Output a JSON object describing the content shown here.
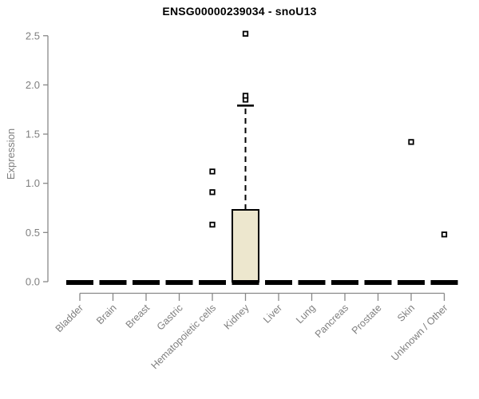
{
  "chart_data": {
    "type": "boxplot",
    "title": "ENSG00000239034 - snoU13",
    "ylabel": "Expression",
    "ylim": [
      0,
      2.5
    ],
    "yticks": [
      0.0,
      0.5,
      1.0,
      1.5,
      2.0,
      2.5
    ],
    "ytick_labels": [
      "0.0",
      "0.5",
      "1.0",
      "1.5",
      "2.0",
      "2.5"
    ],
    "categories": [
      "Bladder",
      "Brain",
      "Breast",
      "Gastric",
      "Hematopoietic cells",
      "Kidney",
      "Liver",
      "Lung",
      "Pancreas",
      "Prostate",
      "Skin",
      "Unknown / Other"
    ],
    "series": [
      {
        "name": "Bladder",
        "q1": 0,
        "median": 0,
        "q3": 0,
        "whisker_low": 0,
        "whisker_high": 0,
        "outliers": []
      },
      {
        "name": "Brain",
        "q1": 0,
        "median": 0,
        "q3": 0,
        "whisker_low": 0,
        "whisker_high": 0,
        "outliers": []
      },
      {
        "name": "Breast",
        "q1": 0,
        "median": 0,
        "q3": 0,
        "whisker_low": 0,
        "whisker_high": 0,
        "outliers": []
      },
      {
        "name": "Gastric",
        "q1": 0,
        "median": 0,
        "q3": 0,
        "whisker_low": 0,
        "whisker_high": 0,
        "outliers": []
      },
      {
        "name": "Hematopoietic cells",
        "q1": 0,
        "median": 0,
        "q3": 0,
        "whisker_low": 0,
        "whisker_high": 0,
        "outliers": [
          0.58,
          0.91,
          1.12
        ]
      },
      {
        "name": "Kidney",
        "q1": 0,
        "median": 0,
        "q3": 0.73,
        "whisker_low": 0,
        "whisker_high": 1.79,
        "outliers": [
          1.85,
          1.89,
          2.52
        ]
      },
      {
        "name": "Liver",
        "q1": 0,
        "median": 0,
        "q3": 0,
        "whisker_low": 0,
        "whisker_high": 0,
        "outliers": []
      },
      {
        "name": "Lung",
        "q1": 0,
        "median": 0,
        "q3": 0,
        "whisker_low": 0,
        "whisker_high": 0,
        "outliers": []
      },
      {
        "name": "Pancreas",
        "q1": 0,
        "median": 0,
        "q3": 0,
        "whisker_low": 0,
        "whisker_high": 0,
        "outliers": []
      },
      {
        "name": "Prostate",
        "q1": 0,
        "median": 0,
        "q3": 0,
        "whisker_low": 0,
        "whisker_high": 0,
        "outliers": []
      },
      {
        "name": "Skin",
        "q1": 0,
        "median": 0,
        "q3": 0,
        "whisker_low": 0,
        "whisker_high": 0,
        "outliers": [
          1.42
        ]
      },
      {
        "name": "Unknown / Other",
        "q1": 0,
        "median": 0,
        "q3": 0,
        "whisker_low": 0,
        "whisker_high": 0,
        "outliers": [
          0.48
        ]
      }
    ],
    "legend": null,
    "grid": false,
    "colors": {
      "box_fill": "#ede7ce",
      "box_border": "#000000",
      "median_line": "#000000",
      "axis_line": "#888888",
      "label_text": "#7f7f7f",
      "title_text": "#000000",
      "outlier_fill": "#ffffff",
      "outlier_border": "#000000"
    }
  }
}
